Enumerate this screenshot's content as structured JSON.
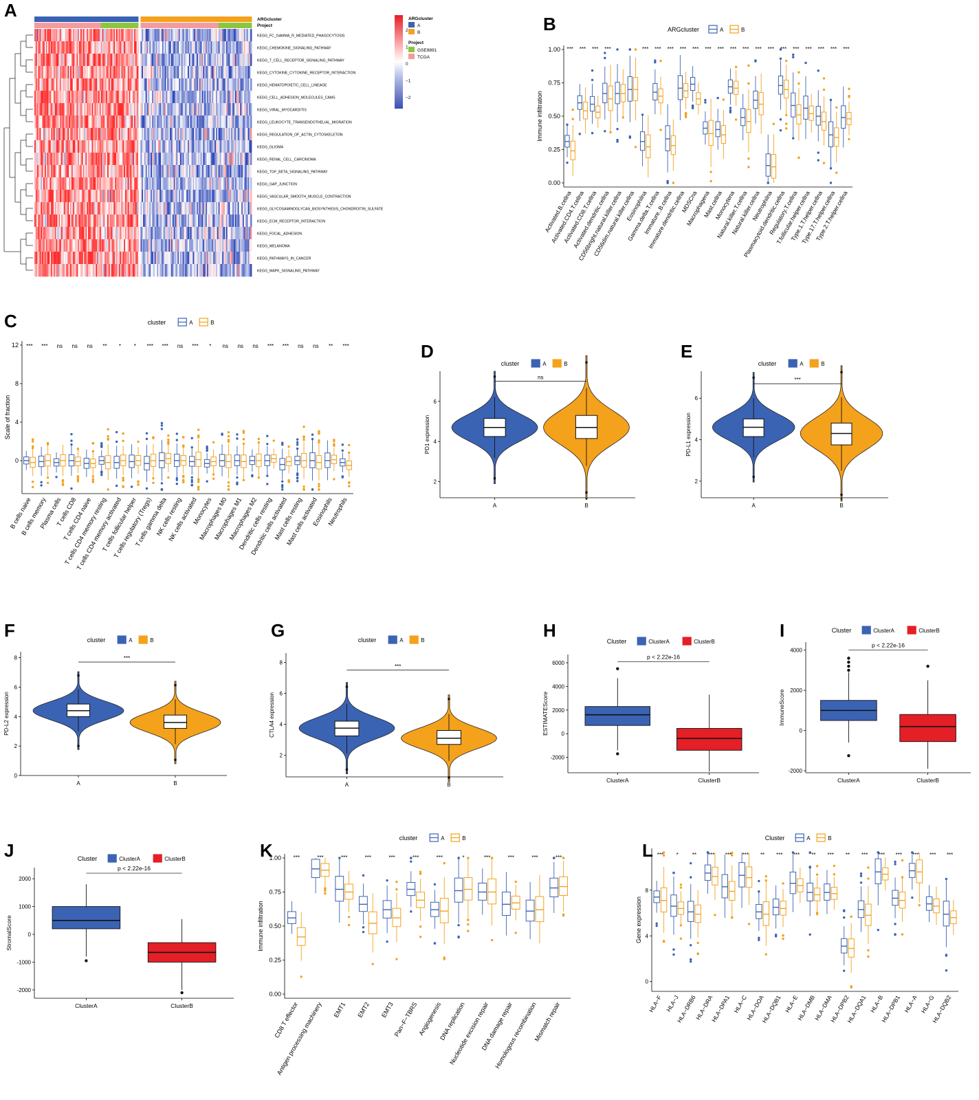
{
  "colors": {
    "blue": "#3b63b4",
    "orange": "#f4a11c",
    "red": "#e41f26",
    "green": "#8cc63f",
    "pink": "#f39ca0",
    "axis": "#000000"
  },
  "chart_data": [
    {
      "panel": "A",
      "type": "heatmap",
      "title": "",
      "legend": {
        "argcluster_title": "ARGcluster",
        "argcluster_levels": [
          "A",
          "B"
        ],
        "project_title": "Project",
        "project_levels": [
          "GSE9891",
          "TCGA"
        ],
        "scale_ticks": [
          "2",
          "1",
          "0",
          "−1",
          "−2"
        ]
      },
      "annotation_rows": [
        "ARGcluster",
        "Project"
      ],
      "rows": [
        "KEGG_FC_GAMMA_R_MEDIATED_PHAGOCYTOSIS",
        "KEGG_CHEMOKINE_SIGNALING_PATHWAY",
        "KEGG_T_CELL_RECEPTOR_SIGNALING_PATHWAY",
        "KEGG_CYTOKINE_CYTOKINE_RECEPTOR_INTERACTION",
        "KEGG_HEMATOPOIETIC_CELL_LINEAGE",
        "KEGG_CELL_ADHESION_MOLECULES_CAMS",
        "KEGG_VIRAL_MYOCARDITIS",
        "KEGG_LEUKOCYTE_TRANSENDOTHELIAL_MIGRATION",
        "KEGG_REGULATION_OF_ACTIN_CYTOSKELETON",
        "KEGG_GLIOMA",
        "KEGG_RENAL_CELL_CARCINOMA",
        "KEGG_TGF_BETA_SIGNALING_PATHWAY",
        "KEGG_GAP_JUNCTION",
        "KEGG_VASCULAR_SMOOTH_MUSCLE_CONTRACTION",
        "KEGG_GLYCOSAMINOGLYCAN_BIOSYNTHESIS_CHONDROITIN_SULFATE",
        "KEGG_ECM_RECEPTOR_INTERACTION",
        "KEGG_FOCAL_ADHESION",
        "KEGG_MELANOMA",
        "KEGG_PATHWAYS_IN_CANCER",
        "KEGG_MAPK_SIGNALING_PATHWAY"
      ],
      "cluster_A_mean": 1.2,
      "cluster_B_mean": -0.9
    },
    {
      "panel": "B",
      "type": "box",
      "legend_title": "ARGcluster",
      "legend": [
        "A",
        "B"
      ],
      "ylabel": "Immune infiltration",
      "xlabel": "",
      "ylim": [
        0,
        1
      ],
      "yticks": [
        "0.00",
        "0.25",
        "0.50",
        "0.75",
        "1.00"
      ],
      "categories": [
        "Activated.B.cellna",
        "Activated.CD4.T.cellna",
        "Activated.CD8.T.cellna",
        "Activated.dendritic.cellna",
        "CD56bright.natural.killer.cellna",
        "CD56dim.natural.killer.cellna",
        "Eosinophilna",
        "Gamma.delta.T.cellna",
        "Immature..B.cellna",
        "Immature.dendritic.cellna",
        "MDSCna",
        "Macrophagena",
        "Mast.cellna",
        "Monocytena",
        "Natural.killer.T.cellna",
        "Natural.killer.cellna",
        "Neutrophilna",
        "Plasmacytoid.dendritic.cellna",
        "Regulatory.T.cellna",
        "T.follicular.helper.cellna",
        "Type.1.T.helper.cellna",
        "Type.17.T.helper.cellna",
        "Type.2.T.helper.cellna"
      ],
      "sig": [
        "***",
        "***",
        "***",
        "***",
        "",
        "",
        "***",
        "***",
        "***",
        "***",
        "***",
        "***",
        "***",
        "***",
        "***",
        "***",
        "***",
        "***",
        "***",
        "***",
        "***",
        "***",
        "***"
      ],
      "series": [
        {
          "name": "A",
          "median": [
            0.31,
            0.6,
            0.59,
            0.67,
            0.67,
            0.7,
            0.31,
            0.68,
            0.33,
            0.71,
            0.74,
            0.41,
            0.4,
            0.72,
            0.49,
            0.62,
            0.13,
            0.73,
            0.58,
            0.56,
            0.5,
            0.36,
            0.49
          ]
        },
        {
          "name": "B",
          "median": [
            0.24,
            0.54,
            0.53,
            0.63,
            0.67,
            0.7,
            0.27,
            0.65,
            0.28,
            0.69,
            0.63,
            0.37,
            0.36,
            0.71,
            0.46,
            0.59,
            0.12,
            0.7,
            0.51,
            0.52,
            0.46,
            0.34,
            0.48
          ]
        }
      ]
    },
    {
      "panel": "C",
      "type": "box",
      "legend_title": "cluster",
      "legend": [
        "A",
        "B"
      ],
      "ylabel": "Scale of fraction",
      "ylim": [
        -3,
        12
      ],
      "yticks": [
        "0",
        "4",
        "8",
        "12"
      ],
      "categories": [
        "B cells naive",
        "B cells memory",
        "Plasma cells",
        "T cells CD8",
        "T cells CD4 naive",
        "T cells CD4 memory resting",
        "T cells CD4 memory activated",
        "T cells follicular helper",
        "T cells regulatory (Tregs)",
        "T cells gamma delta",
        "NK cells resting",
        "NK cells activated",
        "Monocytes",
        "Macrophages M0",
        "Macrophages M1",
        "Macrophages M2",
        "Dendritic cells resting",
        "Dendritic cells activated",
        "Mast cells resting",
        "Mast cells activated",
        "Eosinophils",
        "Neutrophils"
      ],
      "sig": [
        "***",
        "***",
        "ns",
        "ns",
        "ns",
        "**",
        "*",
        "*",
        "***",
        "***",
        "ns",
        "***",
        "*",
        "ns",
        "ns",
        "ns",
        "***",
        "***",
        "ns",
        "ns",
        "**",
        "***"
      ],
      "series": [
        {
          "name": "A",
          "median": [
            0.0,
            -0.1,
            -0.2,
            0.0,
            -0.3,
            0.0,
            -0.2,
            -0.1,
            -0.3,
            0.0,
            0.0,
            -0.1,
            -0.3,
            0.0,
            0.0,
            0.0,
            0.0,
            -0.4,
            0.0,
            0.0,
            0.0,
            -0.2
          ]
        },
        {
          "name": "B",
          "median": [
            -0.2,
            0.0,
            0.0,
            -0.1,
            -0.3,
            -0.2,
            0.0,
            0.0,
            0.0,
            0.2,
            0.0,
            0.1,
            -0.1,
            -0.1,
            -0.1,
            0.0,
            0.2,
            -0.1,
            0.0,
            -0.2,
            0.1,
            -0.5
          ]
        }
      ]
    },
    {
      "panel": "D",
      "type": "violin",
      "legend_title": "cluster",
      "legend": [
        "A",
        "B"
      ],
      "ylabel": "PD1 expression",
      "categories": [
        "A",
        "B"
      ],
      "ylim": [
        1.2,
        7.5
      ],
      "yticks": [
        "2",
        "4",
        "6"
      ],
      "median": [
        4.7,
        4.7
      ],
      "q1": [
        4.25,
        4.15
      ],
      "q3": [
        5.15,
        5.3
      ],
      "sig": "ns"
    },
    {
      "panel": "E",
      "type": "violin",
      "legend_title": "cluster",
      "legend": [
        "A",
        "B"
      ],
      "ylabel": "PD-L1 expression",
      "categories": [
        "A",
        "B"
      ],
      "ylim": [
        1.2,
        7.3
      ],
      "yticks": [
        "2",
        "4",
        "6"
      ],
      "median": [
        4.6,
        4.3
      ],
      "q1": [
        4.15,
        3.75
      ],
      "q3": [
        5.0,
        4.8
      ],
      "sig": "***"
    },
    {
      "panel": "F",
      "type": "violin",
      "legend_title": "cluster",
      "legend": [
        "A",
        "B"
      ],
      "ylabel": "PD-L2 expression",
      "categories": [
        "A",
        "B"
      ],
      "ylim": [
        0,
        8.4
      ],
      "yticks": [
        "0",
        "2",
        "4",
        "6",
        "8"
      ],
      "median": [
        4.4,
        3.6
      ],
      "q1": [
        4.0,
        3.2
      ],
      "q3": [
        4.85,
        4.1
      ],
      "sig": "***"
    },
    {
      "panel": "G",
      "type": "violin",
      "legend_title": "cluster",
      "legend": [
        "A",
        "B"
      ],
      "ylabel": "CTLA4 expression",
      "categories": [
        "A",
        "B"
      ],
      "ylim": [
        0.6,
        8.6
      ],
      "yticks": [
        "2",
        "4",
        "6",
        "8"
      ],
      "median": [
        3.75,
        3.1
      ],
      "q1": [
        3.25,
        2.7
      ],
      "q3": [
        4.2,
        3.6
      ],
      "sig": "***"
    },
    {
      "panel": "H",
      "type": "box",
      "legend_title": "Cluster",
      "legend": [
        "ClusterA",
        "ClusterB"
      ],
      "ylabel": "ESTIMATEScore",
      "categories": [
        "ClusterA",
        "ClusterB"
      ],
      "ylim": [
        -3300,
        6700
      ],
      "yticks": [
        "-2000",
        "0",
        "2000",
        "4000",
        "6000"
      ],
      "median": [
        1600,
        -400
      ],
      "q1": [
        700,
        -1400
      ],
      "q3": [
        2300,
        450
      ],
      "whisker_low": [
        -1400,
        -3200
      ],
      "whisker_high": [
        4700,
        3300
      ],
      "outliers": [
        [
          5500,
          -1700
        ],
        []
      ],
      "pvalue": "p < 2.22e-16"
    },
    {
      "panel": "I",
      "type": "box",
      "legend_title": "Cluster",
      "legend": [
        "ClusterA",
        "ClusterB"
      ],
      "ylabel": "ImmuneScore",
      "categories": [
        "ClusterA",
        "ClusterB"
      ],
      "ylim": [
        -2100,
        4400
      ],
      "yticks": [
        "-2000",
        "0",
        "2000",
        "4000"
      ],
      "median": [
        1000,
        200
      ],
      "q1": [
        500,
        -550
      ],
      "q3": [
        1500,
        800
      ],
      "whisker_low": [
        -600,
        -1900
      ],
      "whisker_high": [
        2900,
        2500
      ],
      "outliers": [
        [
          3600,
          3400,
          3200,
          3000,
          -1250
        ],
        [
          3200
        ]
      ],
      "pvalue": "p < 2.22e-16"
    },
    {
      "panel": "J",
      "type": "box",
      "legend_title": "Cluster",
      "legend": [
        "ClusterA",
        "ClusterB"
      ],
      "ylabel": "StromalScore",
      "categories": [
        "ClusterA",
        "ClusterB"
      ],
      "ylim": [
        -2300,
        2400
      ],
      "yticks": [
        "-2000",
        "-1000",
        "0",
        "1000",
        "2000"
      ],
      "median": [
        500,
        -650
      ],
      "q1": [
        200,
        -1000
      ],
      "q3": [
        1000,
        -300
      ],
      "whisker_low": [
        -800,
        -2000
      ],
      "whisker_high": [
        1800,
        550
      ],
      "outliers": [
        [
          -950
        ],
        [
          -2100
        ]
      ],
      "pvalue": "p < 2.22e-16"
    },
    {
      "panel": "K",
      "type": "box",
      "legend_title": "cluster",
      "legend": [
        "A",
        "B"
      ],
      "ylabel": "Immune infiltration",
      "ylim": [
        0,
        1
      ],
      "yticks": [
        "0.00",
        "0.25",
        "0.50",
        "0.75",
        "1.00"
      ],
      "categories": [
        "CD8 T effector",
        "Antigen processing machinery",
        "EMT1",
        "EMT2",
        "EMT3",
        "Pan−F−TBRS",
        "Angiogenesis",
        "DNA replication",
        "Nucleotide excision repair",
        "DNA damage repair",
        "Homologous recombination",
        "Mismatch repair"
      ],
      "sig": [
        "***",
        "***",
        "***",
        "***",
        "***",
        "***",
        "***",
        "*",
        "***",
        "***",
        "***",
        "***"
      ],
      "series": [
        {
          "name": "A",
          "median": [
            0.56,
            0.92,
            0.77,
            0.66,
            0.62,
            0.77,
            0.62,
            0.76,
            0.75,
            0.66,
            0.61,
            0.78
          ]
        },
        {
          "name": "B",
          "median": [
            0.42,
            0.91,
            0.75,
            0.52,
            0.56,
            0.69,
            0.61,
            0.77,
            0.75,
            0.67,
            0.62,
            0.79
          ]
        }
      ]
    },
    {
      "panel": "L",
      "type": "box",
      "legend_title": "Cluster",
      "legend": [
        "A",
        "B"
      ],
      "ylabel": "Gene expression",
      "ylim": [
        -0.5,
        11.3
      ],
      "yticks": [
        "0",
        "4",
        "8"
      ],
      "categories": [
        "HLA−F",
        "HLA−J",
        "HLA−DRB6",
        "HLA−DRA",
        "HLA−DPA1",
        "HLA−C",
        "HLA−DOA",
        "HLA−DQB1",
        "HLA−E",
        "HLA−DMB",
        "HLA−DMA",
        "HLA−DPB2",
        "HLA−DQA1",
        "HLA−B",
        "HLA−DPB1",
        "HLA−A",
        "HLA−G",
        "HLA−DQB2"
      ],
      "sig": [
        "***",
        "*",
        "**",
        "***",
        "***",
        "***",
        "**",
        "***",
        "***",
        "**",
        "***",
        "**",
        "***",
        "***",
        "***",
        "***",
        "***",
        "***"
      ],
      "series": [
        {
          "name": "A",
          "median": [
            7.4,
            6.6,
            6.1,
            9.5,
            8.3,
            9.3,
            6.1,
            6.5,
            8.6,
            7.8,
            7.8,
            3.1,
            6.3,
            9.6,
            7.3,
            9.7,
            6.8,
            5.9
          ]
        },
        {
          "name": "B",
          "median": [
            7.1,
            6.4,
            5.9,
            9.2,
            7.9,
            9.1,
            5.9,
            6.4,
            8.4,
            7.6,
            7.7,
            2.9,
            5.8,
            9.4,
            7.1,
            9.6,
            6.6,
            5.6
          ]
        }
      ]
    }
  ]
}
